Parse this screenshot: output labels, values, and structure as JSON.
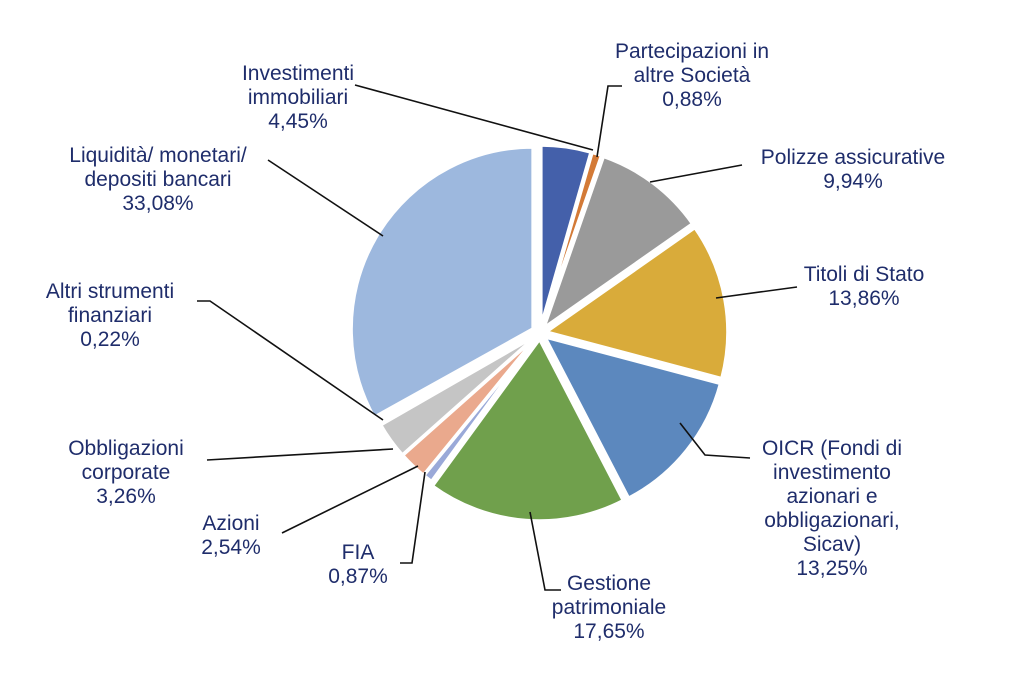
{
  "chart_data": {
    "type": "pie",
    "slices": [
      {
        "label": [
          "Investimenti",
          "immobiliari"
        ],
        "value": 4.45,
        "value_text": "4,45%",
        "color": "#4460aa"
      },
      {
        "label": [
          "Partecipazioni in",
          "altre Società"
        ],
        "value": 0.88,
        "value_text": "0,88%",
        "color": "#d37a37"
      },
      {
        "label": [
          "Polizze assicurative"
        ],
        "value": 9.94,
        "value_text": "9,94%",
        "color": "#9a9a9a"
      },
      {
        "label": [
          "Titoli di Stato"
        ],
        "value": 13.86,
        "value_text": "13,86%",
        "color": "#d9ab3a"
      },
      {
        "label": [
          "OICR (Fondi di",
          "investimento",
          "azionari e",
          "obbligazionari,",
          "Sicav)"
        ],
        "value": 13.25,
        "value_text": "13,25%",
        "color": "#5c88be"
      },
      {
        "label": [
          "Gestione",
          "patrimoniale"
        ],
        "value": 17.65,
        "value_text": "17,65%",
        "color": "#70a04c"
      },
      {
        "label": [
          "FIA"
        ],
        "value": 0.87,
        "value_text": "0,87%",
        "color": "#9aa9d8"
      },
      {
        "label": [
          "Azioni"
        ],
        "value": 2.54,
        "value_text": "2,54%",
        "color": "#eaa98d"
      },
      {
        "label": [
          "Obbligazioni",
          "corporate"
        ],
        "value": 3.26,
        "value_text": "3,26%",
        "color": "#c5c5c5"
      },
      {
        "label": [
          "Altri strumenti",
          "finanziari"
        ],
        "value": 0.22,
        "value_text": "0,22%",
        "color": "#f1c87c"
      },
      {
        "label": [
          "Liquidità/ monetari/",
          "depositi bancari"
        ],
        "value": 33.08,
        "value_text": "33,08%",
        "color": "#9db8de"
      }
    ],
    "legend": "none",
    "labels": "outside with leader lines"
  }
}
